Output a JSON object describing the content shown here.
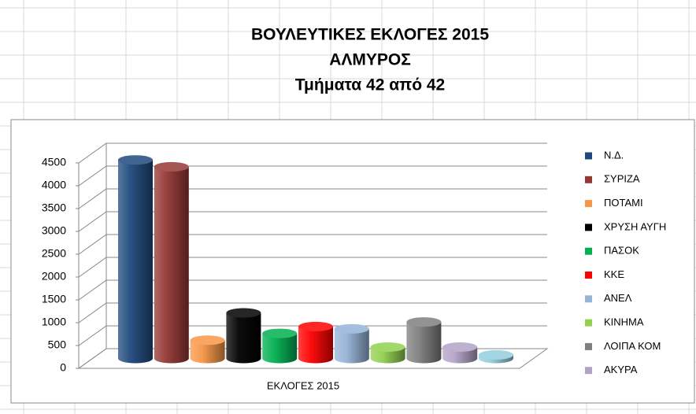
{
  "chart_data": {
    "type": "bar3d",
    "title": [
      "ΒΟΥΛΕΥΤΙΚΕΣ ΕΚΛΟΓΕΣ 2015",
      "ΑΛΜΥΡΟΣ",
      "Τμήματα 42 από 42"
    ],
    "categories": [
      "ΕΚΛΟΓΕΣ 2015"
    ],
    "series": [
      {
        "name": "Ν.Δ.",
        "color": "#1f497d",
        "values": [
          4350
        ]
      },
      {
        "name": "ΣΥΡΙΖΑ",
        "color": "#953735",
        "values": [
          4200
        ]
      },
      {
        "name": "ΠΟΤΑΜΙ",
        "color": "#f79646",
        "values": [
          400
        ]
      },
      {
        "name": "ΧΡΥΣΗ ΑΥΓΗ",
        "color": "#000000",
        "values": [
          1000
        ]
      },
      {
        "name": "ΠΑΣΟΚ",
        "color": "#00b050",
        "values": [
          550
        ]
      },
      {
        "name": "ΚΚΕ",
        "color": "#ff0000",
        "values": [
          700
        ]
      },
      {
        "name": "ΑΝΕΛ",
        "color": "#95b3d7",
        "values": [
          650
        ]
      },
      {
        "name": "ΚΙΝΗΜΑ",
        "color": "#92d050",
        "values": [
          250
        ]
      },
      {
        "name": "ΛΟΙΠΑ ΚΟΜ",
        "color": "#7f7f7f",
        "values": [
          800
        ]
      },
      {
        "name": "ΑΚΥΡΑ",
        "color": "#b3a2c7",
        "values": [
          250
        ]
      },
      {
        "name": null,
        "color": "#93cddd",
        "values": [
          80
        ]
      }
    ],
    "ylim": [
      0,
      4500
    ],
    "yticks": [
      0,
      500,
      1000,
      1500,
      2000,
      2500,
      3000,
      3500,
      4000,
      4500
    ],
    "grid": true
  }
}
